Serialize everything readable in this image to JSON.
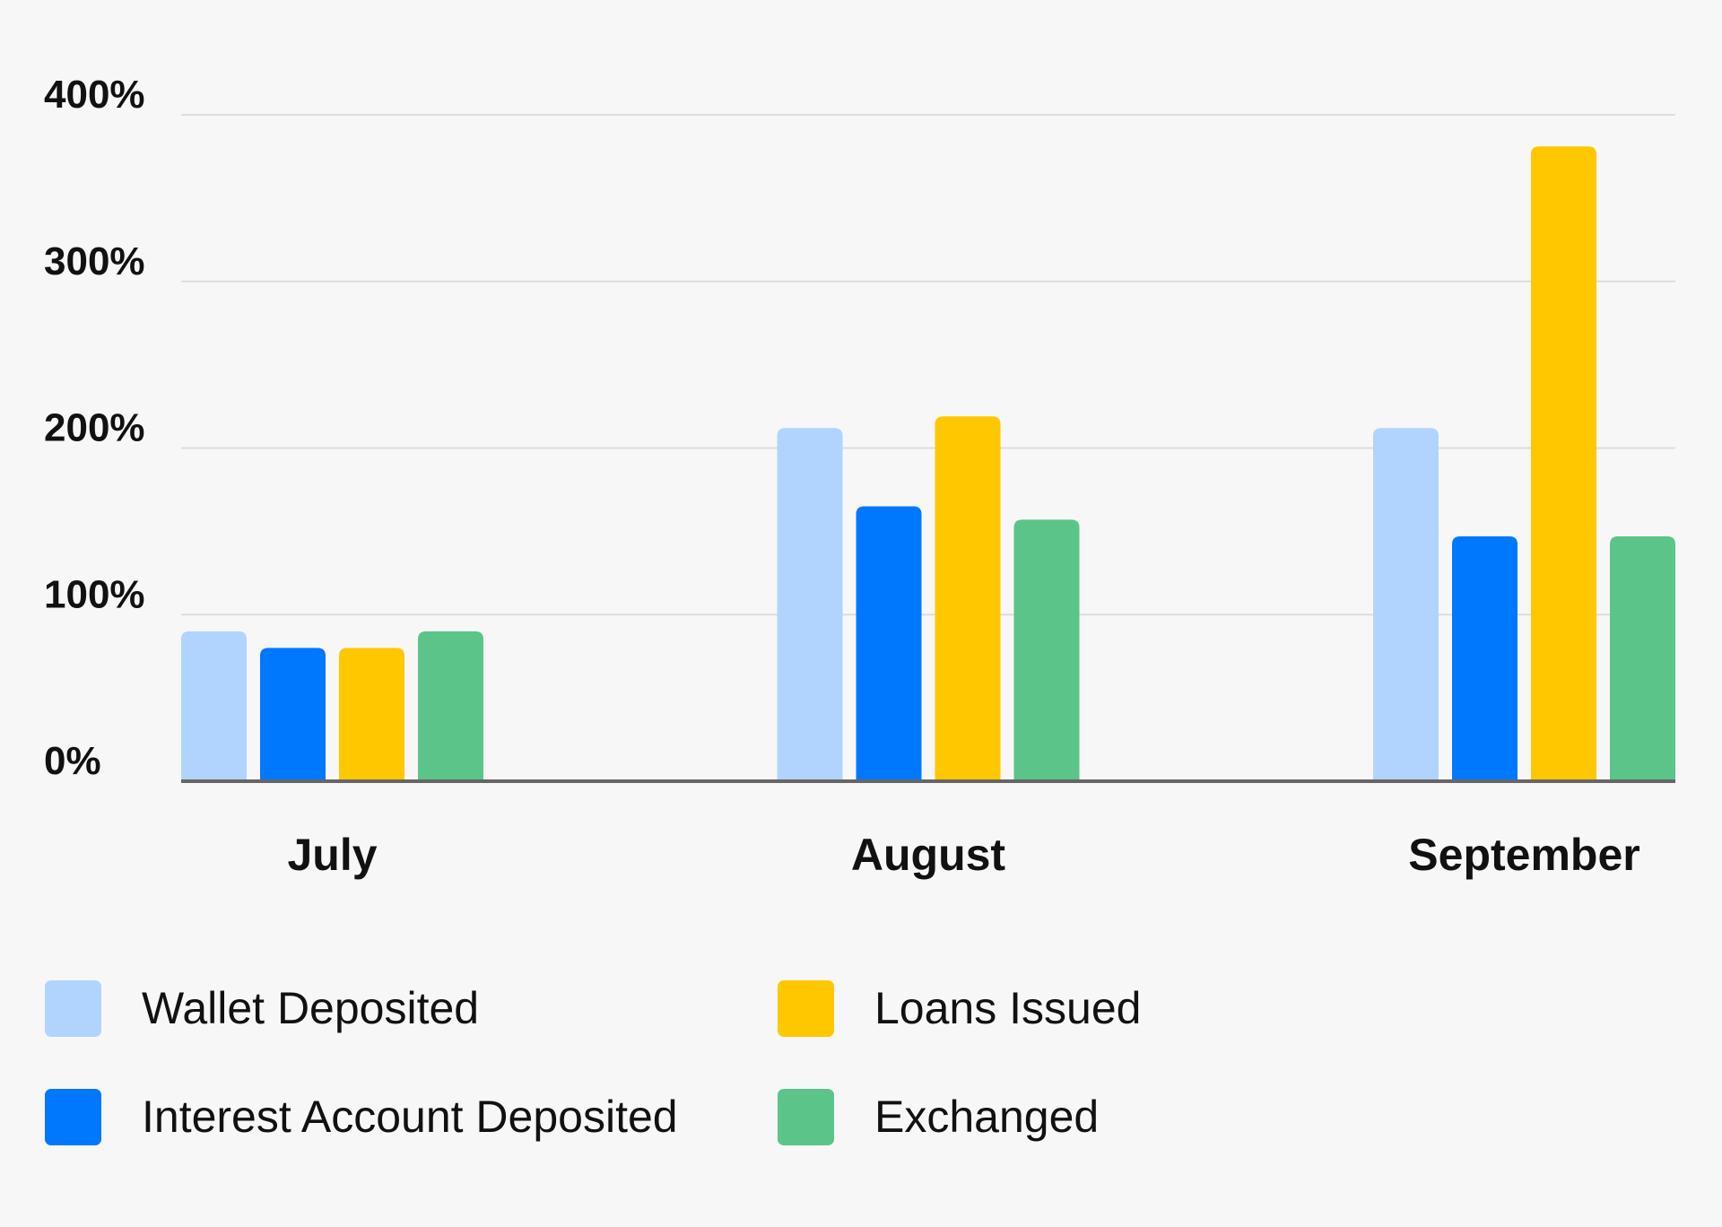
{
  "chart_data": {
    "type": "bar",
    "title": "",
    "xlabel": "",
    "ylabel": "",
    "categories": [
      "July",
      "August",
      "September"
    ],
    "ylim": [
      0,
      400
    ],
    "yticks": [
      {
        "value": 0,
        "label": "0%"
      },
      {
        "value": 100,
        "label": "100%"
      },
      {
        "value": 200,
        "label": "200%"
      },
      {
        "value": 300,
        "label": "300%"
      },
      {
        "value": 400,
        "label": "400%"
      }
    ],
    "grid": true,
    "legend_position": "bottom",
    "series": [
      {
        "name": "Wallet Deposited",
        "color": "#b1d4fe",
        "values": [
          90,
          212,
          212
        ]
      },
      {
        "name": "Interest Account Deposited",
        "color": "#0078fe",
        "values": [
          80,
          165,
          147
        ]
      },
      {
        "name": "Loans Issued",
        "color": "#ffc700",
        "values": [
          80,
          219,
          381
        ]
      },
      {
        "name": "Exchanged",
        "color": "#5bc489",
        "values": [
          90,
          157,
          147
        ]
      }
    ]
  },
  "colors": {
    "background": "#f7f7f7",
    "gridline": "#dddddd",
    "baseline": "#666666",
    "text": "#111111"
  }
}
